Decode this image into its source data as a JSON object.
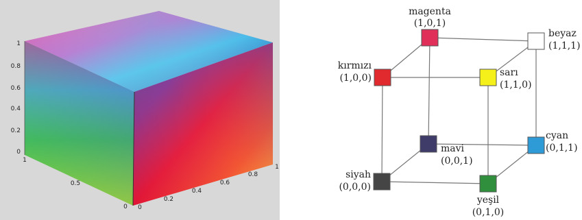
{
  "left_plot": {
    "background": "#d8d8d8",
    "z_ticks": [
      "1",
      "0.8",
      "0.6",
      "0.4",
      "0.2",
      "0"
    ],
    "front_left_ticks": [
      "1",
      "0.5",
      "0"
    ],
    "front_right_ticks": [
      "0",
      "0.2",
      "0.4",
      "0.6",
      "0.8",
      "1"
    ]
  },
  "cube_nodes": [
    {
      "id": "magenta",
      "name": "magenta",
      "coords": "(1,0,1)",
      "color": "#e0305a"
    },
    {
      "id": "beyaz",
      "name": "beyaz",
      "coords": "(1,1,1)",
      "color": "#ffffff"
    },
    {
      "id": "kirmizi",
      "name": "kırmızı",
      "coords": "(1,0,0)",
      "color": "#e02a2e"
    },
    {
      "id": "sari",
      "name": "sarı",
      "coords": "(1,1,0)",
      "color": "#f5ef1a"
    },
    {
      "id": "mavi",
      "name": "mavi",
      "coords": "(0,0,1)",
      "color": "#3f3c6a"
    },
    {
      "id": "cyan",
      "name": "cyan",
      "coords": "(0,1,1)",
      "color": "#2f9bd6"
    },
    {
      "id": "siyah",
      "name": "siyah",
      "coords": "(0,0,0)",
      "color": "#454545"
    },
    {
      "id": "yesil",
      "name": "yeşil",
      "coords": "(0,1,0)",
      "color": "#2f8f3c"
    }
  ]
}
